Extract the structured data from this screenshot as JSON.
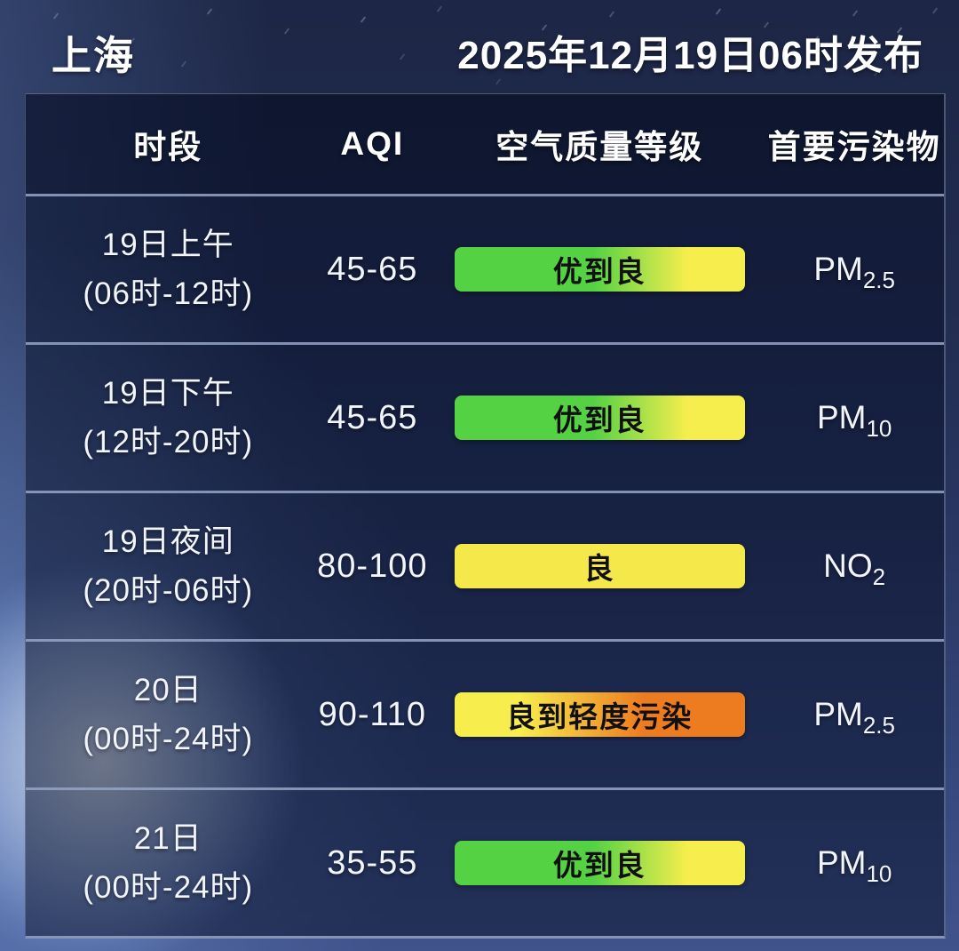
{
  "header": {
    "city": "上海",
    "published": "2025年12月19日06时发布"
  },
  "table": {
    "columns": [
      "时段",
      "AQI",
      "空气质量等级",
      "首要污染物"
    ],
    "rows": [
      {
        "period_line1": "19日上午",
        "period_line2": "(06时-12时)",
        "aqi": "45-65",
        "level": "优到良",
        "level_gradient": {
          "from": "#55d244",
          "from_stop": "48%",
          "to": "#f5ee4d",
          "to_stop": "80%"
        },
        "pollutant_base": "PM",
        "pollutant_sub": "2.5"
      },
      {
        "period_line1": "19日下午",
        "period_line2": "(12时-20时)",
        "aqi": "45-65",
        "level": "优到良",
        "level_gradient": {
          "from": "#55d244",
          "from_stop": "48%",
          "to": "#f5ee4d",
          "to_stop": "80%"
        },
        "pollutant_base": "PM",
        "pollutant_sub": "10"
      },
      {
        "period_line1": "19日夜间",
        "period_line2": "(20时-06时)",
        "aqi": "80-100",
        "level": "良",
        "level_gradient": {
          "from": "#f5e84b",
          "from_stop": "0%",
          "to": "#f5e84b",
          "to_stop": "100%"
        },
        "pollutant_base": "NO",
        "pollutant_sub": "2"
      },
      {
        "period_line1": "20日",
        "period_line2": "(00时-24时)",
        "aqi": "90-110",
        "level": "良到轻度污染",
        "level_gradient": {
          "from": "#f7ee4e",
          "from_stop": "22%",
          "to": "#ed7c20",
          "to_stop": "65%"
        },
        "pollutant_base": "PM",
        "pollutant_sub": "2.5"
      },
      {
        "period_line1": "21日",
        "period_line2": "(00时-24时)",
        "aqi": "35-55",
        "level": "优到良",
        "level_gradient": {
          "from": "#55d244",
          "from_stop": "48%",
          "to": "#f5ee4d",
          "to_stop": "80%"
        },
        "pollutant_base": "PM",
        "pollutant_sub": "10"
      }
    ]
  },
  "colors": {
    "excellent_green": "#55d244",
    "good_yellow": "#f5e84b",
    "light_pollution_orange": "#ed7c20",
    "pill_text": "#101010",
    "separator": "#97a5c6",
    "text": "#f2f5fb"
  },
  "chart_data": {
    "type": "table",
    "title": "上海",
    "subtitle": "2025年12月19日06时发布",
    "columns": [
      "时段",
      "AQI",
      "空气质量等级",
      "首要污染物"
    ],
    "rows": [
      [
        "19日上午 (06时-12时)",
        "45-65",
        "优到良",
        "PM2.5"
      ],
      [
        "19日下午 (12时-20时)",
        "45-65",
        "优到良",
        "PM10"
      ],
      [
        "19日夜间 (20时-06时)",
        "80-100",
        "良",
        "NO2"
      ],
      [
        "20日 (00时-24时)",
        "90-110",
        "良到轻度污染",
        "PM2.5"
      ],
      [
        "21日 (00时-24时)",
        "35-55",
        "优到良",
        "PM10"
      ]
    ]
  }
}
